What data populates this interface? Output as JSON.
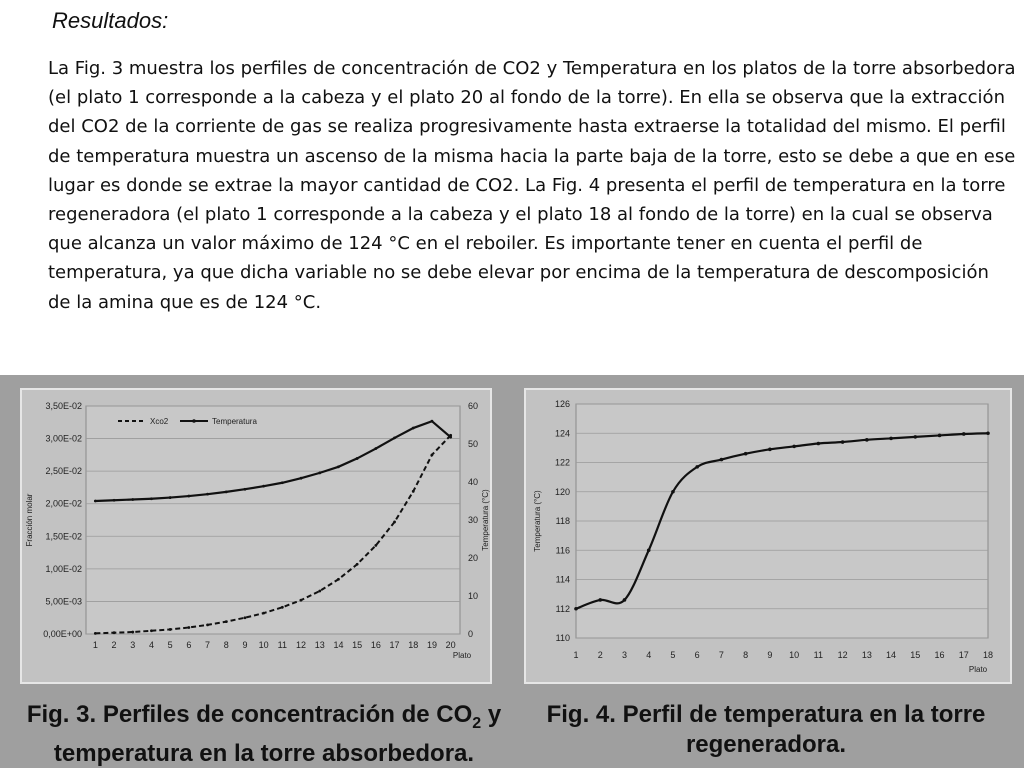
{
  "heading": "Resultados:",
  "paragraph": " La Fig. 3 muestra los perfiles de concentración de CO2 y Temperatura en los platos de la torre absorbedora (el plato 1 corresponde a la cabeza y el plato 20 al fondo de la torre). En ella se observa que la extracción del CO2 de la corriente de gas se realiza progresivamente hasta extraerse la totalidad del mismo. El perfil de temperatura muestra un ascenso de la misma hacia la parte baja de la torre, esto se debe a que en ese lugar es donde se extrae la mayor cantidad de CO2. La Fig. 4 presenta el perfil de temperatura en la torre regeneradora (el plato 1 corresponde a la cabeza y el plato 18 al fondo de la torre) en la cual se observa que alcanza un valor máximo de 124 °C en el reboiler. Es importante tener en cuenta el perfil de temperatura, ya que dicha variable no se debe elevar por encima de la temperatura de descomposición de la amina que es de 124 °C.",
  "captions": {
    "fig3_pre": "Fig. 3. Perfiles de concentración de CO",
    "fig3_sub": "2",
    "fig3_post": "  y",
    "fig3_line2": "temperatura en la torre absorbedora.",
    "fig4_line1": "Fig. 4. Perfil de temperatura en  la torre",
    "fig4_line2": "regeneradora."
  },
  "chart_data": [
    {
      "type": "line",
      "x": [
        1,
        2,
        3,
        4,
        5,
        6,
        7,
        8,
        9,
        10,
        11,
        12,
        13,
        14,
        15,
        16,
        17,
        18,
        19,
        20
      ],
      "xlabel": "Plato",
      "ylabel": "Fracción molar",
      "y2label": "Temperatura (°C)",
      "ylim": [
        0,
        0.035
      ],
      "y2lim": [
        0,
        60
      ],
      "yticks": [
        "0,00E+00",
        "5,00E-03",
        "1,00E-02",
        "1,50E-02",
        "2,00E-02",
        "2,50E-02",
        "3,00E-02",
        "3,50E-02"
      ],
      "y2ticks": [
        "0",
        "10",
        "20",
        "30",
        "40",
        "50",
        "60"
      ],
      "grid": true,
      "legend": "top-left",
      "series": [
        {
          "name": "Xco2",
          "axis": "left",
          "style": "dashed",
          "values": [
            0.0001,
            0.0002,
            0.0003,
            0.0005,
            0.0007,
            0.001,
            0.0014,
            0.0019,
            0.0025,
            0.0032,
            0.0041,
            0.0052,
            0.0066,
            0.0084,
            0.0107,
            0.0136,
            0.0172,
            0.0219,
            0.0275,
            0.0305
          ]
        },
        {
          "name": "Temperatura",
          "axis": "right",
          "style": "solid",
          "values": [
            35.0,
            35.2,
            35.4,
            35.6,
            35.9,
            36.3,
            36.8,
            37.4,
            38.1,
            38.9,
            39.8,
            41.0,
            42.4,
            44.0,
            46.2,
            48.8,
            51.6,
            54.2,
            56.0,
            51.8
          ]
        }
      ]
    },
    {
      "type": "line",
      "x": [
        1,
        2,
        3,
        4,
        5,
        6,
        7,
        8,
        9,
        10,
        11,
        12,
        13,
        14,
        15,
        16,
        17,
        18
      ],
      "xlabel": "Plato",
      "ylabel": "Temperatura (°C)",
      "ylim": [
        110,
        126
      ],
      "yticks": [
        "110",
        "112",
        "114",
        "116",
        "118",
        "120",
        "122",
        "124",
        "126"
      ],
      "grid": true,
      "series": [
        {
          "name": "",
          "style": "solid-markers",
          "values": [
            112.0,
            112.6,
            112.6,
            116.0,
            120.0,
            121.7,
            122.2,
            122.6,
            122.9,
            123.1,
            123.3,
            123.4,
            123.55,
            123.65,
            123.75,
            123.85,
            123.95,
            124.0
          ]
        }
      ]
    }
  ]
}
